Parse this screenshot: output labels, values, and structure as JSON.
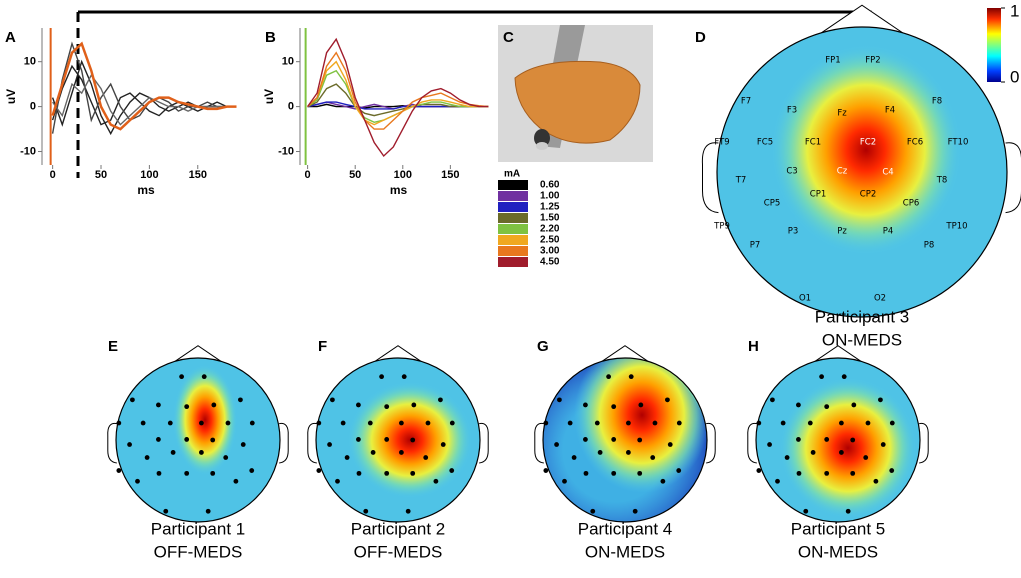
{
  "panel_labels": [
    "A",
    "B",
    "C",
    "D",
    "E",
    "F",
    "G",
    "H"
  ],
  "chart_data": [
    {
      "type": "line",
      "x_label": "ms",
      "y_label": "uV",
      "xlim": [
        -11,
        204
      ],
      "ylim": [
        -13,
        17.5
      ],
      "xticks": [
        0,
        50,
        100,
        150
      ],
      "yticks": [
        10,
        0,
        -10
      ],
      "x": [
        0,
        10,
        20,
        30,
        40,
        50,
        60,
        70,
        80,
        90,
        100,
        110,
        120,
        130,
        140,
        150,
        160,
        170,
        180,
        190
      ],
      "series": [
        {
          "color": "#222222",
          "values": [
            -3,
            4,
            9,
            6,
            1,
            -4,
            -3,
            2,
            3,
            1,
            -1,
            -2,
            0,
            1,
            0,
            -1,
            0,
            1,
            0,
            0
          ]
        },
        {
          "color": "#222222",
          "values": [
            2,
            -4,
            3,
            10,
            5,
            -2,
            -6,
            -2,
            1,
            3,
            2,
            0,
            -1,
            0,
            1,
            0,
            0,
            0,
            0,
            0
          ]
        },
        {
          "color": "#444444",
          "values": [
            -6,
            6,
            14,
            8,
            -3,
            2,
            5,
            0,
            -3,
            -2,
            1,
            2,
            1,
            -1,
            0,
            0,
            1,
            0,
            0,
            0
          ]
        },
        {
          "color": "#666666",
          "values": [
            1,
            -2,
            5,
            3,
            7,
            4,
            -1,
            -4,
            -2,
            0,
            2,
            1,
            0,
            0,
            -1,
            0,
            0,
            0,
            0,
            0
          ]
        },
        {
          "color": "#e0601a",
          "values": [
            -2,
            5,
            12,
            14,
            8,
            0,
            -4,
            -5,
            -3,
            -1,
            1,
            2,
            2,
            1,
            0.5,
            0,
            -0.5,
            -0.5,
            0,
            0
          ]
        }
      ]
    },
    {
      "type": "line",
      "x_label": "ms",
      "y_label": "uV",
      "legend_title": "mA",
      "xlim": [
        -8,
        199
      ],
      "ylim": [
        -13,
        17.5
      ],
      "xticks": [
        0,
        50,
        100,
        150
      ],
      "yticks": [
        10,
        0,
        -10
      ],
      "x": [
        0,
        10,
        20,
        30,
        40,
        50,
        60,
        70,
        80,
        90,
        100,
        110,
        120,
        130,
        140,
        150,
        160,
        170,
        180,
        190
      ],
      "series": [
        {
          "name": "0.60",
          "color": "#000000",
          "values": [
            0,
            0,
            0.5,
            0,
            0,
            0,
            -0.3,
            0,
            0,
            0,
            0.2,
            0,
            0,
            0,
            0,
            0,
            0,
            0,
            0,
            0
          ]
        },
        {
          "name": "1.00",
          "color": "#7030a0",
          "values": [
            0,
            0.5,
            1,
            0.5,
            0,
            -0.5,
            0,
            0.5,
            0,
            -0.5,
            0,
            0.5,
            0,
            0,
            0,
            0,
            0,
            0,
            0,
            0
          ]
        },
        {
          "name": "1.25",
          "color": "#2020c0",
          "values": [
            0,
            0.5,
            1,
            1,
            0.5,
            0,
            -0.5,
            -0.5,
            -0.5,
            -0.5,
            0,
            0,
            0,
            0,
            0,
            0,
            0,
            0,
            0,
            0
          ]
        },
        {
          "name": "1.50",
          "color": "#6b6b2a",
          "values": [
            0,
            1,
            4,
            5,
            3,
            0,
            -1.5,
            -2,
            -1.5,
            -1,
            -0.5,
            0,
            0.5,
            0.5,
            0.5,
            0,
            0,
            0,
            0,
            0
          ]
        },
        {
          "name": "2.20",
          "color": "#7fc241",
          "values": [
            0,
            1.5,
            7,
            8,
            5,
            0,
            -2.5,
            -3.5,
            -3,
            -2,
            -1,
            0,
            0.5,
            1,
            1,
            0.5,
            0,
            0,
            0,
            0
          ]
        },
        {
          "name": "2.50",
          "color": "#f0a820",
          "values": [
            0,
            2,
            8,
            10,
            6,
            0,
            -3,
            -4,
            -3,
            -2,
            -1,
            0,
            1,
            1.5,
            1.5,
            1,
            0.5,
            0,
            0,
            0
          ]
        },
        {
          "name": "3.00",
          "color": "#e8781e",
          "values": [
            0,
            2,
            9,
            12,
            8,
            1,
            -3,
            -5,
            -5,
            -3,
            -1,
            1,
            2,
            2.5,
            3,
            2,
            1,
            0.5,
            0.2,
            0
          ]
        },
        {
          "name": "4.50",
          "color": "#a01c2c",
          "values": [
            0,
            3,
            12,
            15,
            10,
            2,
            -3,
            -8,
            -11,
            -9,
            -5,
            -1,
            2,
            3.5,
            4,
            3,
            1.5,
            0.5,
            0,
            0
          ]
        }
      ]
    }
  ],
  "colorbar": {
    "ticks": [
      1,
      0
    ]
  },
  "electrodes": [
    "FP1",
    "FP2",
    "F7",
    "F3",
    "Fz",
    "F4",
    "F8",
    "FT9",
    "FC5",
    "FC1",
    "FC2",
    "FC6",
    "FT10",
    "T7",
    "C3",
    "Cz",
    "C4",
    "T8",
    "CP5",
    "CP1",
    "CP2",
    "CP6",
    "TP9",
    "TP10",
    "P7",
    "P3",
    "Pz",
    "P4",
    "P8",
    "O1",
    "O2"
  ],
  "captions": [
    {
      "participant": "Participant 3",
      "condition": "ON-MEDS"
    },
    {
      "participant": "Participant 1",
      "condition": "OFF-MEDS"
    },
    {
      "participant": "Participant 2",
      "condition": "OFF-MEDS"
    },
    {
      "participant": "Participant 4",
      "condition": "ON-MEDS"
    },
    {
      "participant": "Participant 5",
      "condition": "ON-MEDS"
    }
  ]
}
